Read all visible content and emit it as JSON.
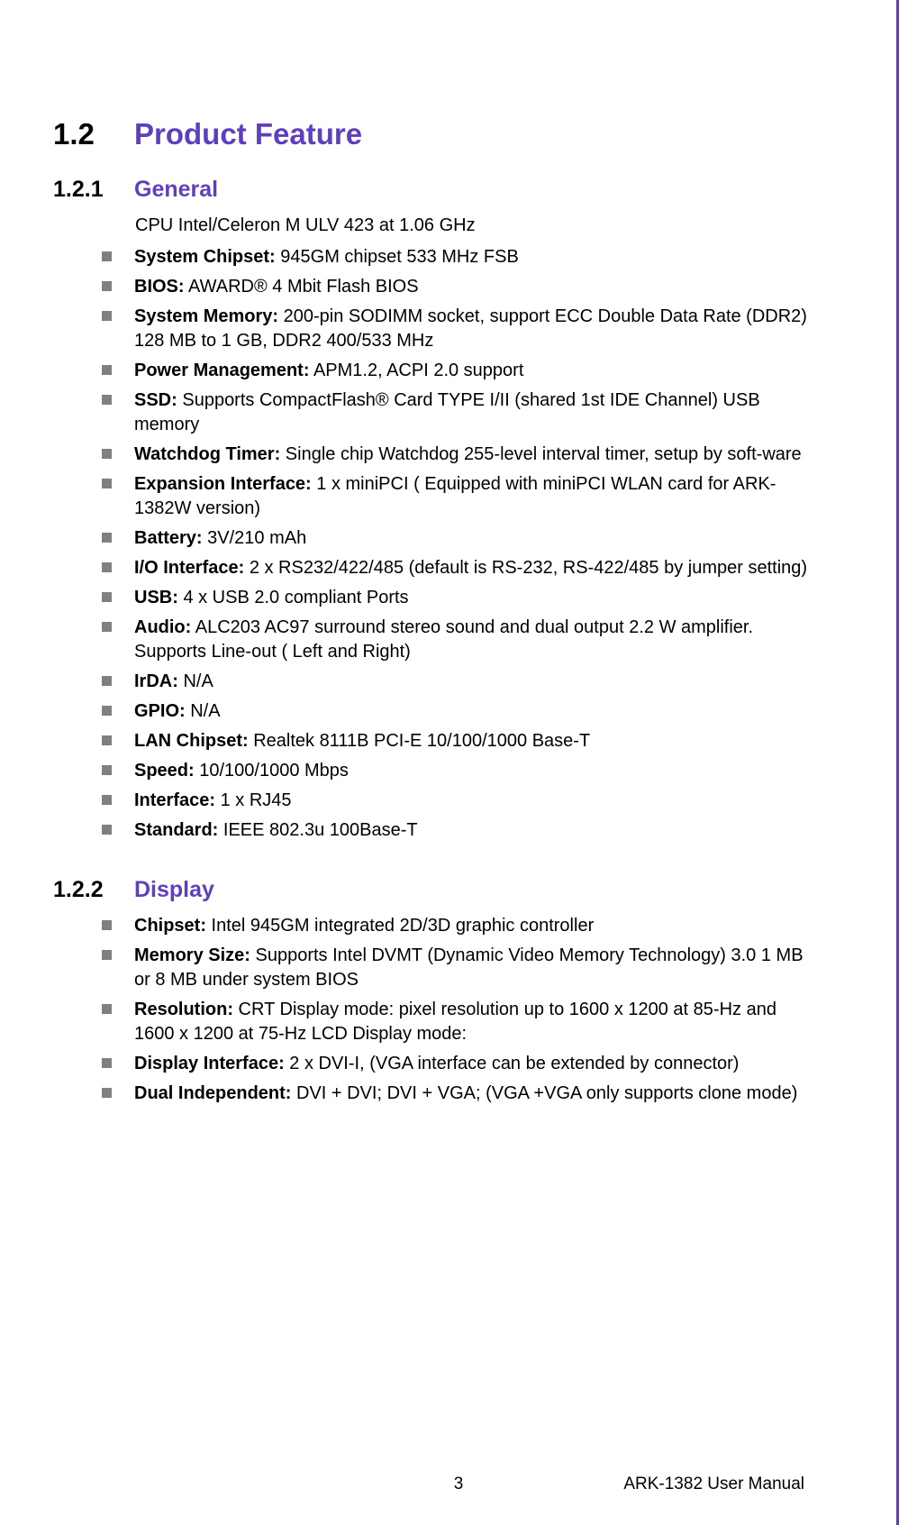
{
  "colors": {
    "heading_accent": "#5f3fbf",
    "side_rule": "#6633cc",
    "bullet_square": "#808080",
    "text": "#000000",
    "background": "#ffffff"
  },
  "typography": {
    "h1_fontsize_pt": 25,
    "h2_fontsize_pt": 19,
    "body_fontsize_pt": 15,
    "font_family": "Arial"
  },
  "section": {
    "number": "1.2",
    "title": "Product Feature"
  },
  "subsections": [
    {
      "number": "1.2.1",
      "title": "General",
      "intro": "CPU Intel/Celeron M ULV 423 at 1.06 GHz",
      "items": [
        {
          "label": "System Chipset:",
          "text": " 945GM chipset 533 MHz FSB"
        },
        {
          "label": "BIOS:",
          "text": " AWARD® 4 Mbit Flash BIOS"
        },
        {
          "label": "System Memory:",
          "text": " 200-pin SODIMM socket, support ECC Double Data Rate (DDR2) 128 MB to 1 GB, DDR2 400/533 MHz"
        },
        {
          "label": "Power Management:",
          "text": " APM1.2, ACPI 2.0 support"
        },
        {
          "label": "SSD:",
          "text": " Supports CompactFlash® Card TYPE I/II (shared 1st IDE Channel) USB memory"
        },
        {
          "label": "Watchdog Timer:",
          "text": " Single chip Watchdog 255-level interval timer, setup by soft-ware"
        },
        {
          "label": "Expansion Interface:",
          "text": " 1 x miniPCI ( Equipped with miniPCI WLAN card for ARK-1382W version)"
        },
        {
          "label": "Battery:",
          "text": " 3V/210 mAh"
        },
        {
          "label": "I/O Interface:",
          "text": " 2 x RS232/422/485 (default is RS-232, RS-422/485 by jumper setting)"
        },
        {
          "label": "USB:",
          "text": " 4 x USB 2.0 compliant Ports"
        },
        {
          "label": "Audio:",
          "text": " ALC203 AC97 surround stereo sound and dual output 2.2 W amplifier. Supports Line-out ( Left and Right)"
        },
        {
          "label": "IrDA:",
          "text": " N/A"
        },
        {
          "label": "GPIO:",
          "text": " N/A"
        },
        {
          "label": "LAN Chipset:",
          "text": " Realtek 8111B PCI-E 10/100/1000 Base-T"
        },
        {
          "label": "Speed:",
          "text": " 10/100/1000 Mbps"
        },
        {
          "label": "Interface:",
          "text": " 1 x RJ45"
        },
        {
          "label": "Standard:",
          "text": " IEEE 802.3u 100Base-T"
        }
      ]
    },
    {
      "number": "1.2.2",
      "title": "Display",
      "intro": "",
      "items": [
        {
          "label": "Chipset:",
          "text": " Intel 945GM integrated 2D/3D graphic controller"
        },
        {
          "label": "Memory Size:",
          "text": " Supports Intel DVMT (Dynamic Video Memory Technology) 3.0 1 MB or 8 MB under system BIOS"
        },
        {
          "label": "Resolution:",
          "text": " CRT Display mode: pixel resolution up to 1600 x 1200 at 85-Hz and 1600 x 1200 at 75-Hz LCD Display mode:"
        },
        {
          "label": "Display Interface:",
          "text": " 2 x DVI-I, (VGA interface can be extended by connector)"
        },
        {
          "label": "Dual Independent:",
          "text": " DVI + DVI; DVI + VGA; (VGA +VGA only supports clone mode)"
        }
      ]
    }
  ],
  "footer": {
    "page_number": "3",
    "doc_title": "ARK-1382 User Manual"
  }
}
